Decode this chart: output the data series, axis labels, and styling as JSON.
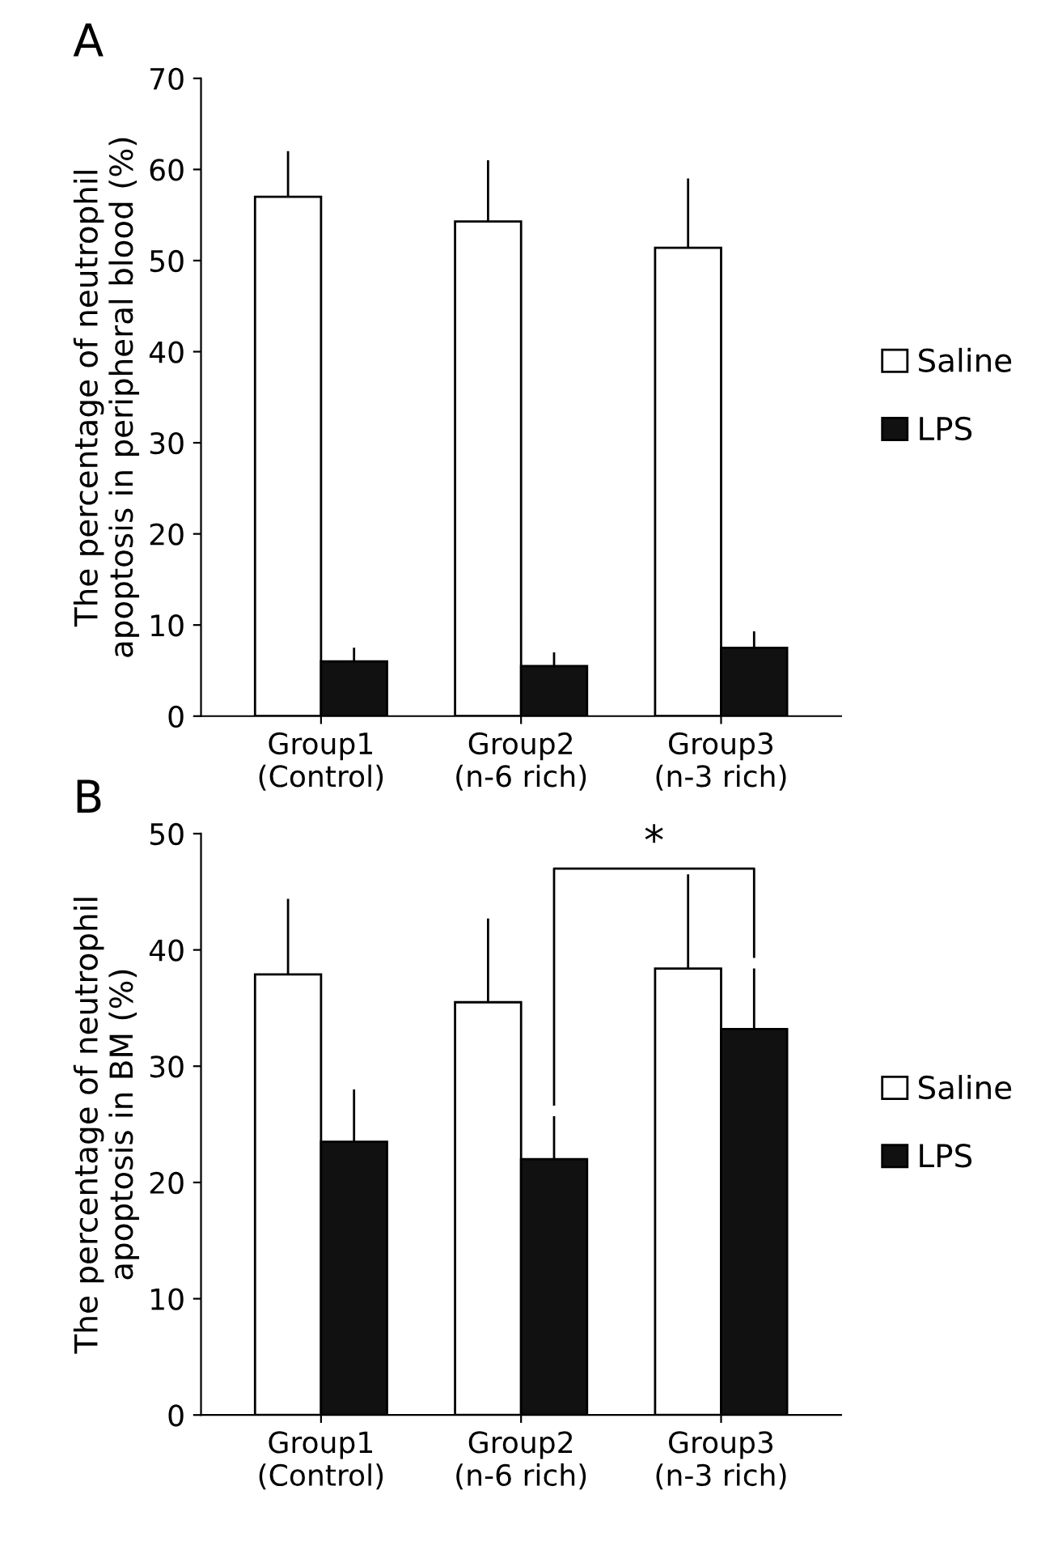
{
  "chart_data": [
    {
      "type": "bar",
      "title": "A",
      "ylabel": "The percentage of neutrophil\napoptosis in peripheral blood (%)",
      "categories": [
        "Group1\n(Control)",
        "Group2\n(n-6 rich)",
        "Group3\n(n-3 rich)"
      ],
      "series": [
        {
          "name": "Saline",
          "color": "#ffffff",
          "values": [
            57,
            54.3,
            51.4
          ],
          "errors": [
            [
              57,
              62
            ],
            [
              54.3,
              61
            ],
            [
              51.4,
              59
            ]
          ]
        },
        {
          "name": "LPS",
          "color": "#111111",
          "values": [
            6,
            5.5,
            7.5
          ],
          "errors": [
            [
              6,
              7.5
            ],
            [
              5.5,
              7
            ],
            [
              7.5,
              9.3
            ]
          ]
        }
      ],
      "ylim": [
        0,
        70
      ],
      "yticks": [
        0,
        10,
        20,
        30,
        40,
        50,
        60,
        70
      ],
      "legend": "right",
      "grid": false
    },
    {
      "type": "bar",
      "title": "B",
      "ylabel": "The percentage of neutrophil\napoptosis in BM (%)",
      "categories": [
        "Group1\n(Control)",
        "Group2\n(n-6 rich)",
        "Group3\n(n-3 rich)"
      ],
      "series": [
        {
          "name": "Saline",
          "color": "#ffffff",
          "values": [
            37.9,
            35.5,
            38.4
          ],
          "errors": [
            [
              37.9,
              44.4
            ],
            [
              35.5,
              42.7
            ],
            [
              38.4,
              46.5
            ]
          ]
        },
        {
          "name": "LPS",
          "color": "#111111",
          "values": [
            23.5,
            22,
            33.2
          ],
          "errors": [
            [
              23.5,
              28
            ],
            [
              22,
              25.7
            ],
            [
              33.2,
              38.4
            ]
          ]
        }
      ],
      "ylim": [
        0,
        50
      ],
      "yticks": [
        0,
        10,
        20,
        30,
        40,
        50
      ],
      "legend": "right",
      "grid": false,
      "annotations": [
        "*"
      ]
    }
  ]
}
